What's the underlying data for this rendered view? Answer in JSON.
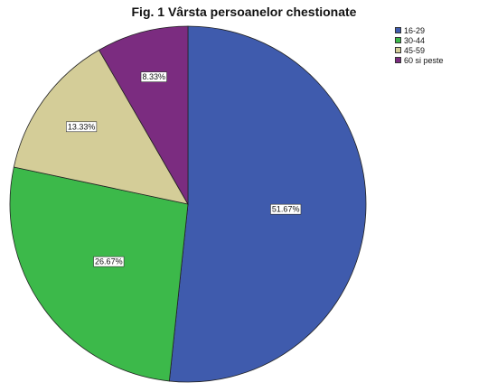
{
  "chart_data": {
    "type": "pie",
    "title": "Fig. 1 Vârsta persoanelor chestionate",
    "categories": [
      "16-29",
      "30-44",
      "45-59",
      "60 si peste"
    ],
    "values": [
      51.67,
      26.67,
      13.33,
      8.33
    ],
    "labels": [
      "51.67%",
      "26.67%",
      "13.33%",
      "8.33%"
    ],
    "colors": [
      "#3f5bad",
      "#3cb94a",
      "#d4cd98",
      "#7b2c80"
    ],
    "legend_position": "top-right"
  }
}
